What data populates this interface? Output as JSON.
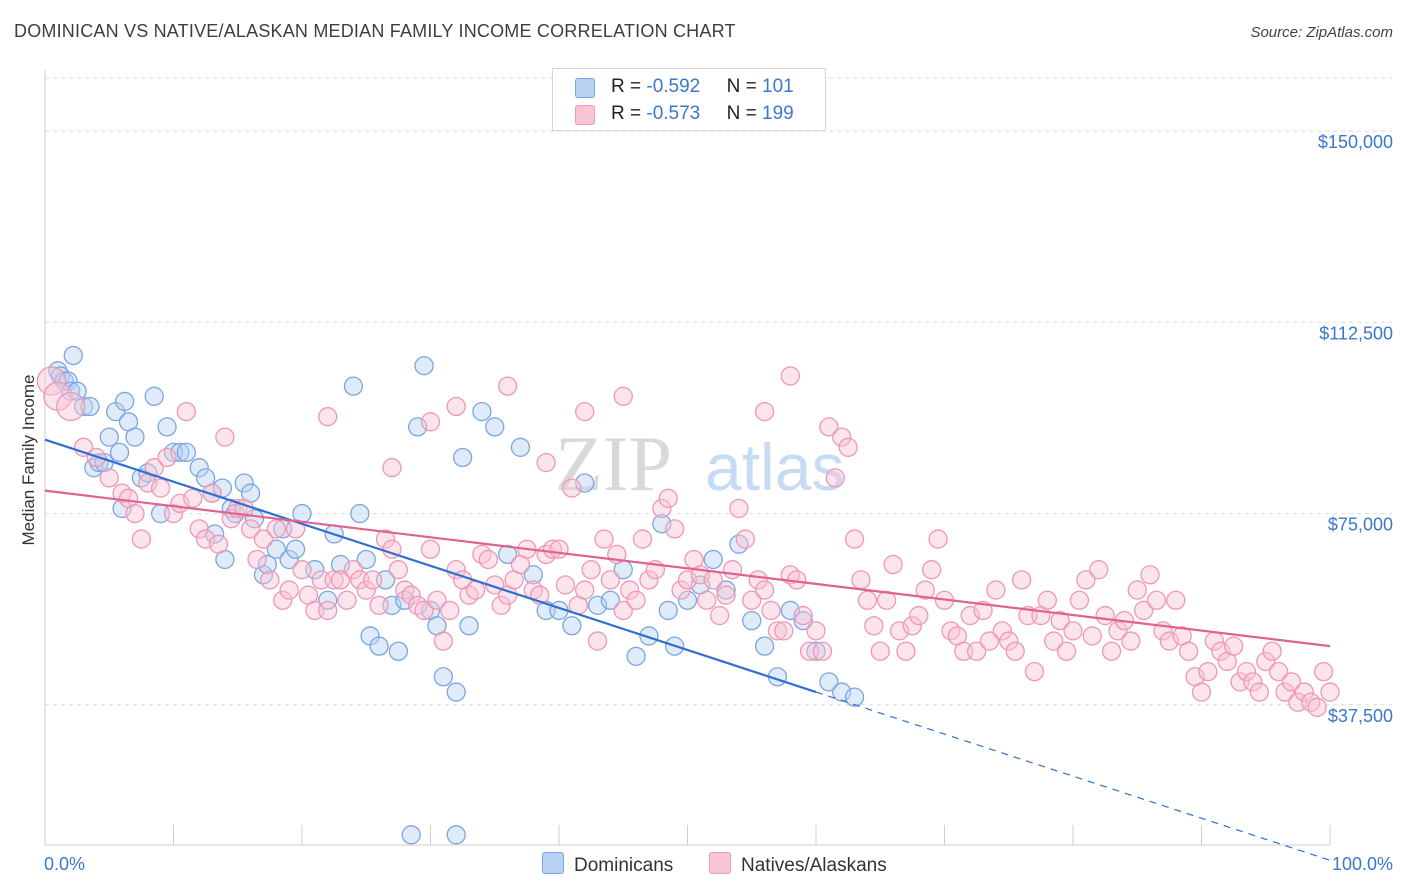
{
  "title": "DOMINICAN VS NATIVE/ALASKAN MEDIAN FAMILY INCOME CORRELATION CHART",
  "source": "Source: ZipAtlas.com",
  "watermark": {
    "zip": "ZIP",
    "atlas": "atlas"
  },
  "legend_top": [
    {
      "r_label": "R = ",
      "r_value": "-0.592",
      "n_label": "N = ",
      "n_value": "101",
      "color_fill": "#b7d2f2",
      "color_stroke": "#7aa6e0"
    },
    {
      "r_label": "R = ",
      "r_value": "-0.573",
      "n_label": "N = ",
      "n_value": "199",
      "color_fill": "#f8c4d5",
      "color_stroke": "#ef97b4"
    }
  ],
  "legend_bottom": [
    {
      "label": "Dominicans",
      "color_fill": "#b7d2f2",
      "color_stroke": "#7aa6e0"
    },
    {
      "label": "Natives/Alaskans",
      "color_fill": "#f8c4d5",
      "color_stroke": "#ef97b4"
    }
  ],
  "chart_data": {
    "type": "scatter",
    "title": "DOMINICAN VS NATIVE/ALASKAN MEDIAN FAMILY INCOME CORRELATION CHART",
    "xlabel": "",
    "ylabel": "Median Family Income",
    "xlim": [
      0,
      100
    ],
    "ylim": [
      10000,
      162000
    ],
    "x_tick_labels": [
      "0.0%",
      "100.0%"
    ],
    "y_ticks": [
      37500,
      75000,
      112500,
      150000
    ],
    "y_tick_labels": [
      "$37,500",
      "$75,000",
      "$112,500",
      "$150,000"
    ],
    "grid": true,
    "series": [
      {
        "name": "Dominicans",
        "color": "#7aa6e0",
        "fill": "#b7d2f2",
        "line_color": "#2f6fd1",
        "trend": {
          "x0": 0,
          "y0": 89500,
          "x1": 60,
          "y1": 40000,
          "dash_to_x": 100,
          "dash_to_y": 7000
        },
        "points": [
          [
            1,
            103
          ],
          [
            1.2,
            102
          ],
          [
            1.5,
            101
          ],
          [
            1.8,
            101
          ],
          [
            2,
            99
          ],
          [
            2.2,
            106
          ],
          [
            2.5,
            99
          ],
          [
            3,
            96
          ],
          [
            3.5,
            96
          ],
          [
            3.8,
            84
          ],
          [
            4.2,
            85
          ],
          [
            4.6,
            85
          ],
          [
            5,
            90
          ],
          [
            5.5,
            95
          ],
          [
            5.8,
            87
          ],
          [
            6,
            76
          ],
          [
            6.2,
            97
          ],
          [
            6.5,
            93
          ],
          [
            7,
            90
          ],
          [
            7.5,
            82
          ],
          [
            8,
            83
          ],
          [
            8.5,
            98
          ],
          [
            9,
            75
          ],
          [
            9.5,
            92
          ],
          [
            10,
            87
          ],
          [
            10.5,
            87
          ],
          [
            11,
            87
          ],
          [
            12,
            84
          ],
          [
            12.5,
            82
          ],
          [
            13,
            79
          ],
          [
            13.2,
            71
          ],
          [
            13.8,
            80
          ],
          [
            14,
            66
          ],
          [
            14.5,
            76
          ],
          [
            14.8,
            75
          ],
          [
            15.5,
            81
          ],
          [
            16,
            79
          ],
          [
            16.3,
            74
          ],
          [
            17,
            63
          ],
          [
            17.3,
            65
          ],
          [
            18,
            68
          ],
          [
            18.5,
            72
          ],
          [
            19,
            66
          ],
          [
            19.5,
            68
          ],
          [
            20,
            75
          ],
          [
            21,
            64
          ],
          [
            22,
            58
          ],
          [
            22.5,
            71
          ],
          [
            23,
            65
          ],
          [
            24,
            100
          ],
          [
            24.5,
            75
          ],
          [
            25,
            66
          ],
          [
            25.3,
            51
          ],
          [
            26,
            49
          ],
          [
            26.5,
            62
          ],
          [
            27,
            57
          ],
          [
            27.5,
            48
          ],
          [
            28,
            58
          ],
          [
            29,
            92
          ],
          [
            29.5,
            104
          ],
          [
            30,
            56
          ],
          [
            30.5,
            53
          ],
          [
            31,
            43
          ],
          [
            32,
            40
          ],
          [
            32.5,
            86
          ],
          [
            33,
            53
          ],
          [
            34,
            95
          ],
          [
            35,
            92
          ],
          [
            36,
            67
          ],
          [
            37,
            88
          ],
          [
            38,
            63
          ],
          [
            39,
            56
          ],
          [
            40,
            56
          ],
          [
            41,
            53
          ],
          [
            42,
            81
          ],
          [
            43,
            57
          ],
          [
            44,
            58
          ],
          [
            45,
            64
          ],
          [
            46,
            47
          ],
          [
            47,
            51
          ],
          [
            48,
            73
          ],
          [
            48.5,
            56
          ],
          [
            49,
            49
          ],
          [
            50,
            58
          ],
          [
            51,
            61
          ],
          [
            52,
            66
          ],
          [
            53,
            60
          ],
          [
            54,
            69
          ],
          [
            55,
            54
          ],
          [
            56,
            49
          ],
          [
            57,
            43
          ],
          [
            58,
            56
          ],
          [
            59,
            54
          ],
          [
            60,
            48
          ],
          [
            61,
            42
          ],
          [
            62,
            40
          ],
          [
            63,
            39
          ],
          [
            28.5,
            12
          ],
          [
            32,
            12
          ]
        ],
        "points_note": "x in percent, y in thousands of dollars (approximate readings)"
      },
      {
        "name": "Natives/Alaskans",
        "color": "#ef97b4",
        "fill": "#f8c4d5",
        "line_color": "#e0628e",
        "trend": {
          "x0": 0,
          "y0": 79500,
          "x1": 100,
          "y1": 49000
        },
        "points": [
          [
            0.5,
            101
          ],
          [
            1,
            98
          ],
          [
            2,
            96
          ],
          [
            3,
            88
          ],
          [
            4,
            86
          ],
          [
            5,
            82
          ],
          [
            6,
            79
          ],
          [
            6.5,
            78
          ],
          [
            7,
            75
          ],
          [
            7.5,
            70
          ],
          [
            8,
            81
          ],
          [
            8.5,
            84
          ],
          [
            9,
            80
          ],
          [
            9.5,
            86
          ],
          [
            10,
            75
          ],
          [
            10.5,
            77
          ],
          [
            11,
            95
          ],
          [
            11.5,
            78
          ],
          [
            12,
            72
          ],
          [
            12.5,
            70
          ],
          [
            13,
            79
          ],
          [
            13.5,
            69
          ],
          [
            14,
            90
          ],
          [
            14.5,
            74
          ],
          [
            15,
            76
          ],
          [
            15.5,
            76
          ],
          [
            16,
            72
          ],
          [
            16.5,
            66
          ],
          [
            17,
            70
          ],
          [
            17.5,
            62
          ],
          [
            18,
            72
          ],
          [
            18.5,
            58
          ],
          [
            19,
            60
          ],
          [
            19.5,
            72
          ],
          [
            20,
            64
          ],
          [
            20.5,
            59
          ],
          [
            21,
            56
          ],
          [
            21.5,
            62
          ],
          [
            22,
            56
          ],
          [
            22.5,
            62
          ],
          [
            23,
            62
          ],
          [
            23.5,
            58
          ],
          [
            24,
            64
          ],
          [
            24.5,
            62
          ],
          [
            25,
            60
          ],
          [
            25.5,
            62
          ],
          [
            26,
            57
          ],
          [
            26.5,
            70
          ],
          [
            27,
            68
          ],
          [
            27.5,
            64
          ],
          [
            28,
            60
          ],
          [
            28.5,
            59
          ],
          [
            29,
            57
          ],
          [
            29.5,
            56
          ],
          [
            30,
            68
          ],
          [
            30.5,
            58
          ],
          [
            31,
            50
          ],
          [
            31.5,
            56
          ],
          [
            32,
            64
          ],
          [
            32.5,
            62
          ],
          [
            33,
            59
          ],
          [
            33.5,
            60
          ],
          [
            34,
            67
          ],
          [
            34.5,
            66
          ],
          [
            35,
            61
          ],
          [
            35.5,
            57
          ],
          [
            36,
            59
          ],
          [
            36.5,
            62
          ],
          [
            37,
            65
          ],
          [
            37.5,
            68
          ],
          [
            38,
            60
          ],
          [
            38.5,
            59
          ],
          [
            39,
            67
          ],
          [
            39.5,
            68
          ],
          [
            40,
            68
          ],
          [
            40.5,
            61
          ],
          [
            41,
            80
          ],
          [
            41.5,
            57
          ],
          [
            42,
            60
          ],
          [
            42.5,
            64
          ],
          [
            43,
            50
          ],
          [
            43.5,
            70
          ],
          [
            44,
            62
          ],
          [
            44.5,
            67
          ],
          [
            45,
            56
          ],
          [
            45.5,
            60
          ],
          [
            46,
            58
          ],
          [
            46.5,
            70
          ],
          [
            47,
            62
          ],
          [
            47.5,
            64
          ],
          [
            48,
            76
          ],
          [
            48.5,
            78
          ],
          [
            49,
            72
          ],
          [
            49.5,
            60
          ],
          [
            50,
            62
          ],
          [
            50.5,
            66
          ],
          [
            51,
            63
          ],
          [
            51.5,
            58
          ],
          [
            52,
            62
          ],
          [
            52.5,
            55
          ],
          [
            53,
            59
          ],
          [
            53.5,
            64
          ],
          [
            54,
            76
          ],
          [
            54.5,
            70
          ],
          [
            55,
            58
          ],
          [
            55.5,
            62
          ],
          [
            56,
            60
          ],
          [
            56.5,
            56
          ],
          [
            57,
            52
          ],
          [
            57.5,
            52
          ],
          [
            58,
            63
          ],
          [
            58.5,
            62
          ],
          [
            59,
            55
          ],
          [
            59.5,
            48
          ],
          [
            60,
            52
          ],
          [
            60.5,
            48
          ],
          [
            61,
            92
          ],
          [
            61.5,
            82
          ],
          [
            62,
            90
          ],
          [
            62.5,
            88
          ],
          [
            63,
            70
          ],
          [
            63.5,
            62
          ],
          [
            64,
            58
          ],
          [
            64.5,
            53
          ],
          [
            65,
            48
          ],
          [
            65.5,
            58
          ],
          [
            66,
            65
          ],
          [
            66.5,
            52
          ],
          [
            67,
            48
          ],
          [
            67.5,
            53
          ],
          [
            68,
            55
          ],
          [
            68.5,
            60
          ],
          [
            69,
            64
          ],
          [
            69.5,
            70
          ],
          [
            70,
            58
          ],
          [
            70.5,
            52
          ],
          [
            71,
            51
          ],
          [
            71.5,
            48
          ],
          [
            72,
            55
          ],
          [
            72.5,
            48
          ],
          [
            73,
            56
          ],
          [
            73.5,
            50
          ],
          [
            74,
            60
          ],
          [
            74.5,
            52
          ],
          [
            75,
            50
          ],
          [
            75.5,
            48
          ],
          [
            76,
            62
          ],
          [
            76.5,
            55
          ],
          [
            77,
            44
          ],
          [
            77.5,
            55
          ],
          [
            78,
            58
          ],
          [
            78.5,
            50
          ],
          [
            79,
            54
          ],
          [
            79.5,
            48
          ],
          [
            80,
            52
          ],
          [
            80.5,
            58
          ],
          [
            81,
            62
          ],
          [
            81.5,
            51
          ],
          [
            82,
            64
          ],
          [
            82.5,
            55
          ],
          [
            83,
            48
          ],
          [
            83.5,
            52
          ],
          [
            84,
            54
          ],
          [
            84.5,
            50
          ],
          [
            85,
            60
          ],
          [
            85.5,
            56
          ],
          [
            86,
            63
          ],
          [
            86.5,
            58
          ],
          [
            87,
            52
          ],
          [
            87.5,
            50
          ],
          [
            88,
            58
          ],
          [
            88.5,
            51
          ],
          [
            89,
            48
          ],
          [
            89.5,
            43
          ],
          [
            90,
            40
          ],
          [
            90.5,
            44
          ],
          [
            91,
            50
          ],
          [
            91.5,
            48
          ],
          [
            92,
            46
          ],
          [
            92.5,
            49
          ],
          [
            93,
            42
          ],
          [
            93.5,
            44
          ],
          [
            94,
            42
          ],
          [
            94.5,
            40
          ],
          [
            95,
            46
          ],
          [
            95.5,
            48
          ],
          [
            96,
            44
          ],
          [
            96.5,
            40
          ],
          [
            97,
            42
          ],
          [
            97.5,
            38
          ],
          [
            98,
            40
          ],
          [
            98.5,
            38
          ],
          [
            99,
            37
          ],
          [
            99.5,
            44
          ],
          [
            100,
            40
          ],
          [
            36,
            100
          ],
          [
            39,
            85
          ],
          [
            42,
            95
          ],
          [
            45,
            98
          ],
          [
            56,
            95
          ],
          [
            58,
            102
          ],
          [
            22,
            94
          ],
          [
            27,
            84
          ],
          [
            30,
            93
          ],
          [
            32,
            96
          ]
        ],
        "points_note": "x in percent, y in thousands of dollars (approximate readings)"
      }
    ]
  }
}
